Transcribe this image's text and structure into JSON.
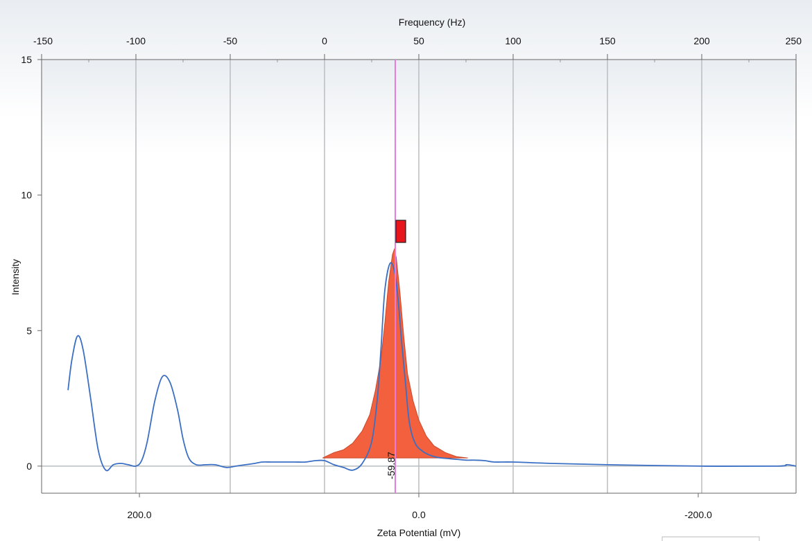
{
  "chart_data": {
    "type": "line",
    "ylabel": "Intensity",
    "xlabel_bottom": "Zeta Potential (mV)",
    "xlabel_top": "Frequency (Hz)",
    "top_axis": {
      "range": [
        -150,
        250
      ],
      "ticks": [
        -150,
        -100,
        -50,
        0,
        50,
        100,
        150,
        200,
        250
      ]
    },
    "bottom_axis": {
      "range": [
        270,
        -270
      ],
      "ticks": [
        "200.0",
        "0.0",
        "-200.0"
      ],
      "tick_values": [
        200,
        0,
        -200
      ]
    },
    "ylim": [
      -1,
      15
    ],
    "yticks": [
      0,
      5,
      10,
      15
    ],
    "grid": true,
    "marker_value": "-59.87",
    "colors": {
      "curve": "#3a6fc4",
      "peak_fill": "#f2603e",
      "marker": "#e87be0",
      "grid": "#b9bdbf",
      "flag": "#e8161b"
    },
    "series": [
      {
        "type": "line",
        "x_hz": [
          -136,
          -134,
          -131,
          -128,
          -124,
          -120,
          -116,
          -112,
          -108,
          -104,
          -100,
          -97,
          -94,
          -90,
          -86,
          -82,
          -78,
          -75,
          -72,
          -68,
          -63,
          -58,
          -52,
          -47,
          -42,
          -37,
          -33,
          -28,
          -22,
          -16,
          -10,
          -5,
          0,
          5,
          10,
          15,
          20,
          25,
          28,
          30,
          32,
          35,
          38,
          41,
          43,
          45,
          48,
          52,
          56,
          60,
          65,
          70,
          75,
          80,
          85,
          90,
          100,
          120,
          150,
          200,
          240,
          245,
          250
        ],
        "y": [
          2.8,
          3.9,
          4.8,
          4.3,
          2.5,
          0.6,
          -0.15,
          0.05,
          0.1,
          0.05,
          0.0,
          0.2,
          0.9,
          2.4,
          3.3,
          3.1,
          2.1,
          1.0,
          0.3,
          0.05,
          0.05,
          0.05,
          -0.05,
          0.0,
          0.05,
          0.1,
          0.15,
          0.15,
          0.15,
          0.15,
          0.15,
          0.2,
          0.2,
          0.05,
          -0.05,
          -0.15,
          0.1,
          0.9,
          2.5,
          4.4,
          6.5,
          7.5,
          6.8,
          4.5,
          3.0,
          1.6,
          0.85,
          0.55,
          0.4,
          0.32,
          0.28,
          0.25,
          0.22,
          0.22,
          0.2,
          0.15,
          0.15,
          0.1,
          0.05,
          0.0,
          0.0,
          0.05,
          0.0
        ]
      },
      {
        "type": "area",
        "x_hz": [
          -1,
          5,
          10,
          15,
          20,
          24,
          27,
          30,
          32,
          34,
          36,
          37,
          38,
          40,
          42,
          44,
          47,
          50,
          54,
          58,
          64,
          70,
          76
        ],
        "y": [
          0.3,
          0.5,
          0.6,
          0.85,
          1.3,
          1.9,
          2.8,
          4.0,
          5.3,
          6.8,
          7.8,
          8.0,
          7.7,
          6.4,
          4.8,
          3.4,
          2.4,
          1.7,
          1.1,
          0.75,
          0.5,
          0.35,
          0.3
        ]
      }
    ],
    "marker_line_hz": 37.5
  }
}
